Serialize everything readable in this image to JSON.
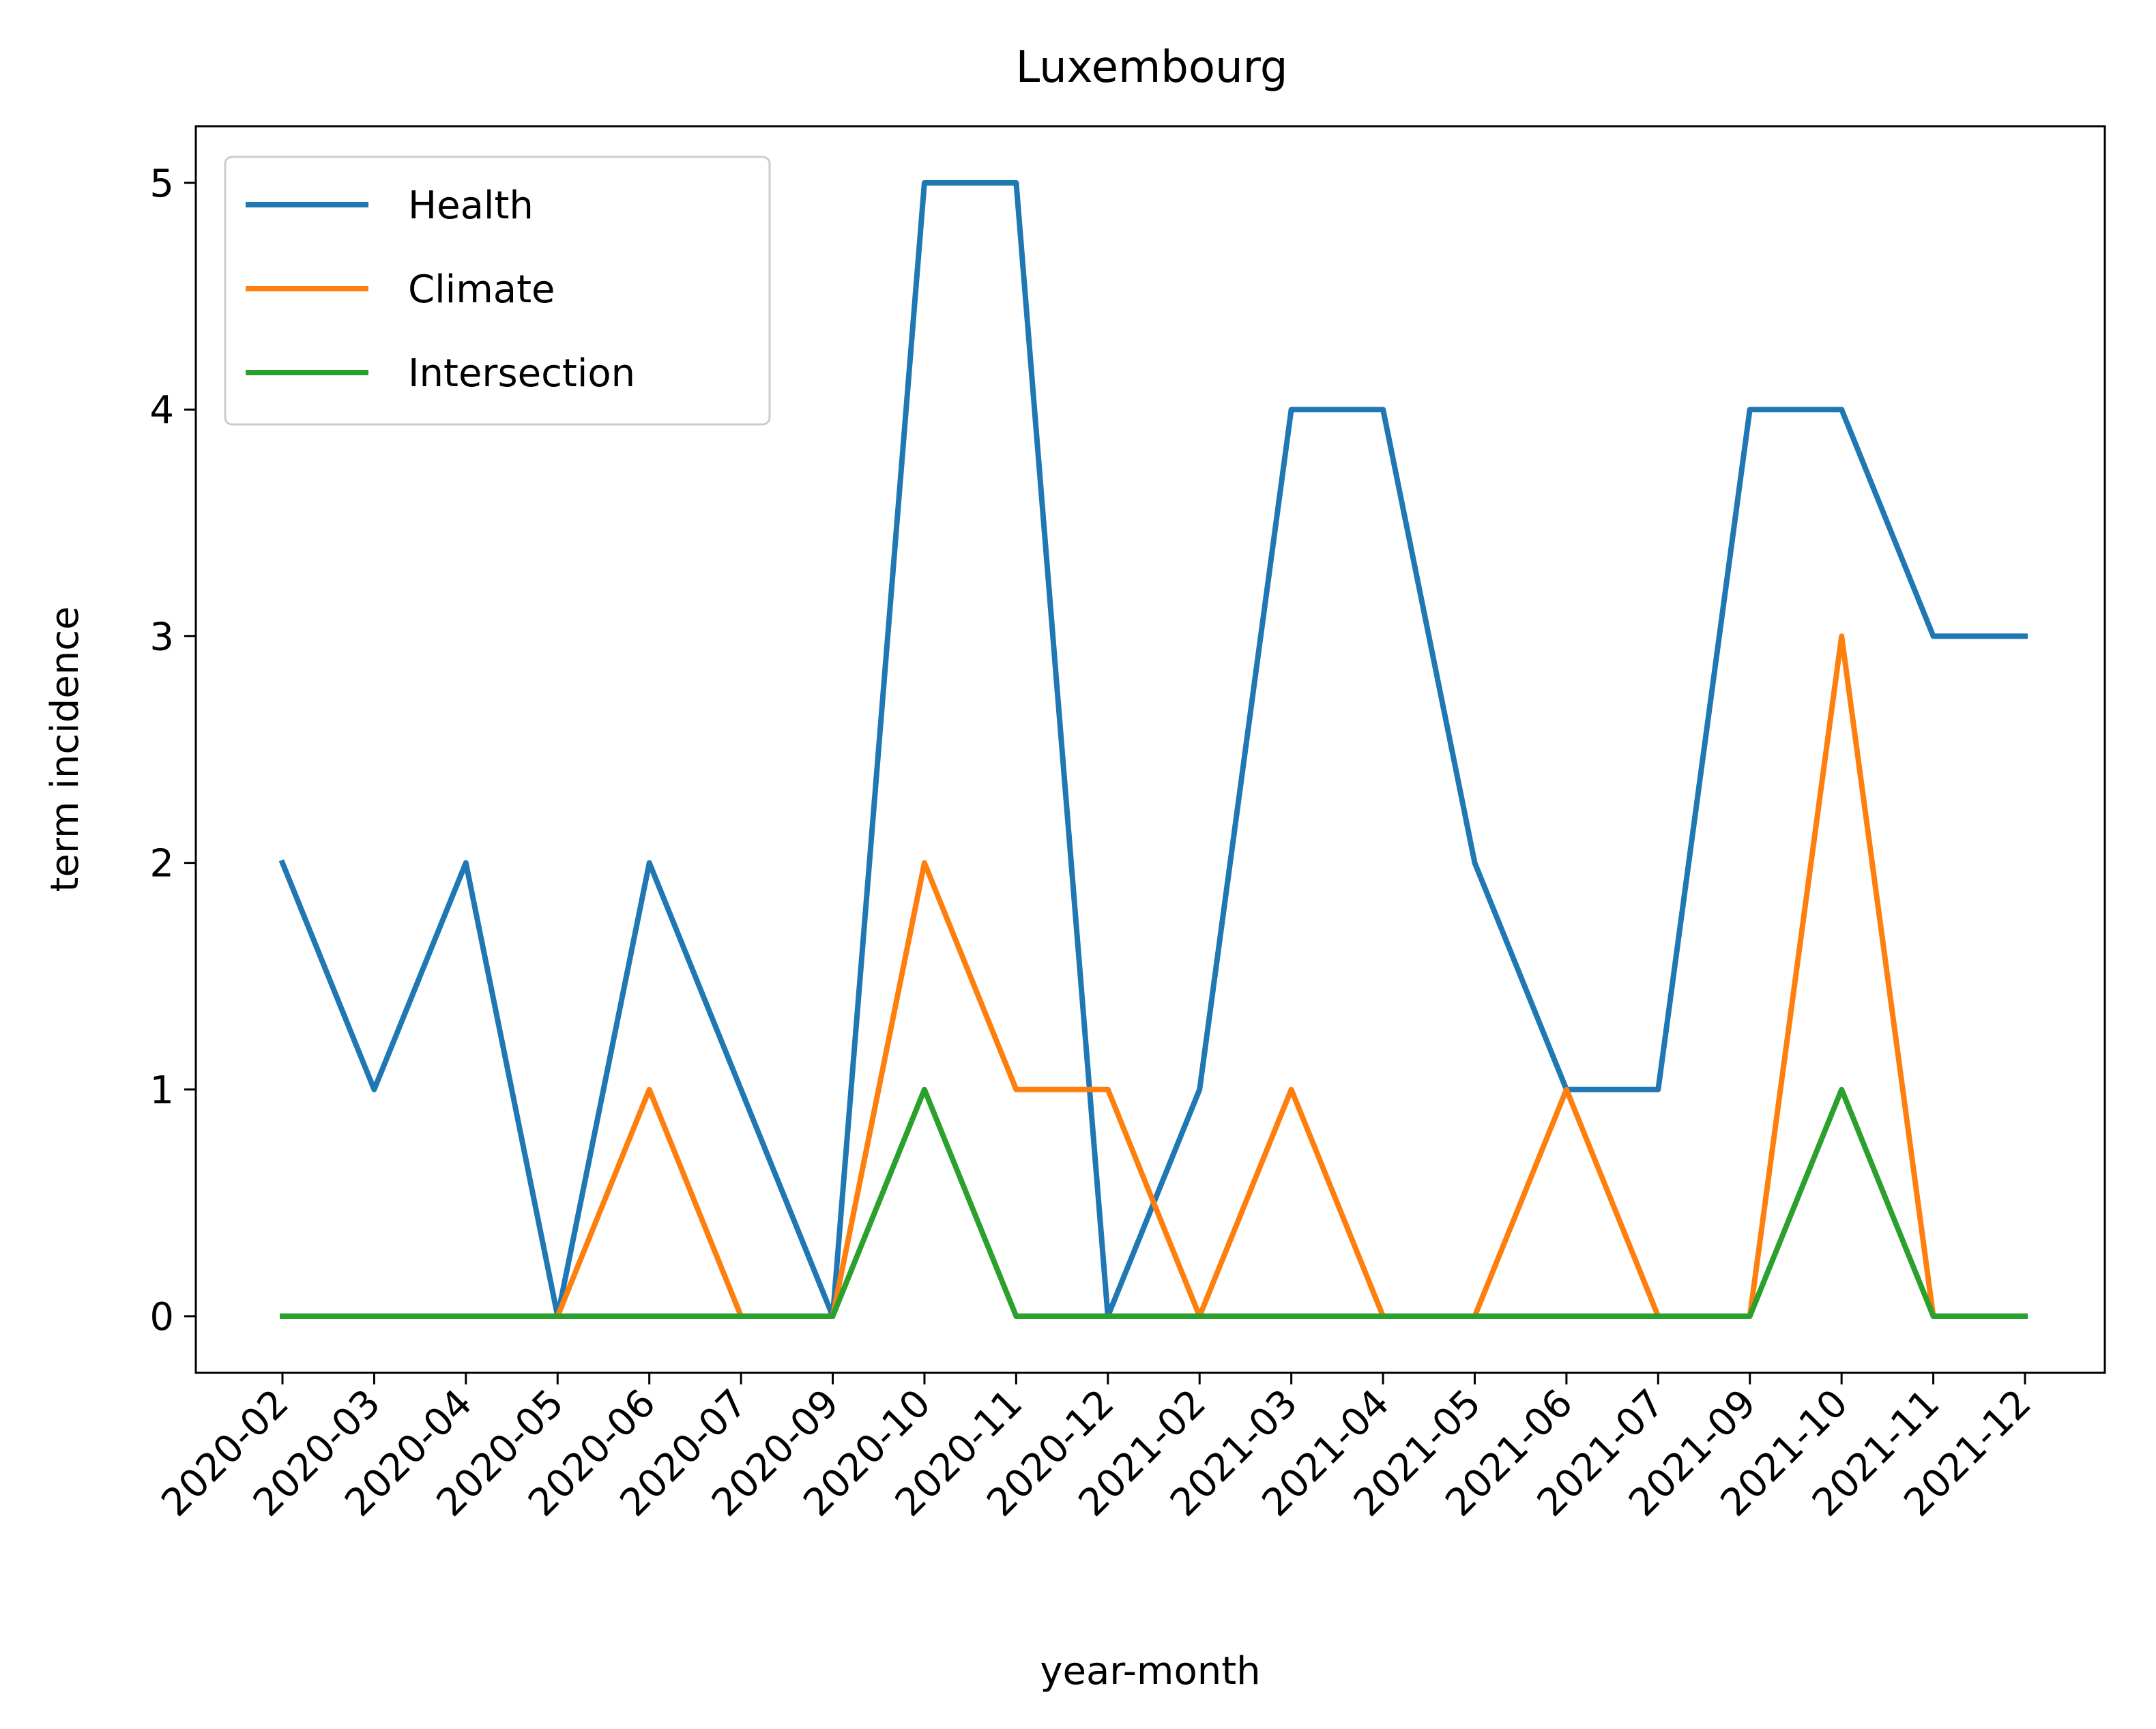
{
  "chart_data": {
    "type": "line",
    "title": "Luxembourg",
    "xlabel": "year-month",
    "ylabel": "term incidence",
    "categories": [
      "2020-02",
      "2020-03",
      "2020-04",
      "2020-05",
      "2020-06",
      "2020-07",
      "2020-09",
      "2020-10",
      "2020-11",
      "2020-12",
      "2021-02",
      "2021-03",
      "2021-04",
      "2021-05",
      "2021-06",
      "2021-07",
      "2021-09",
      "2021-10",
      "2021-11",
      "2021-12"
    ],
    "yticks": [
      "0",
      "1",
      "2",
      "3",
      "4",
      "5"
    ],
    "ylim": [
      -0.25,
      5.25
    ],
    "grid": false,
    "legend_position": "top-left",
    "series": [
      {
        "name": "Health",
        "color": "#1f77b4",
        "values": [
          2,
          1,
          2,
          0,
          2,
          1,
          0,
          5,
          5,
          0,
          1,
          4,
          4,
          2,
          1,
          1,
          4,
          4,
          3,
          3
        ]
      },
      {
        "name": "Climate",
        "color": "#ff7f0e",
        "values": [
          0,
          0,
          0,
          0,
          1,
          0,
          0,
          2,
          1,
          1,
          0,
          1,
          0,
          0,
          1,
          0,
          0,
          3,
          0,
          0
        ]
      },
      {
        "name": "Intersection",
        "color": "#2ca02c",
        "values": [
          0,
          0,
          0,
          0,
          0,
          0,
          0,
          1,
          0,
          0,
          0,
          0,
          0,
          0,
          0,
          0,
          0,
          1,
          0,
          0
        ]
      }
    ]
  }
}
